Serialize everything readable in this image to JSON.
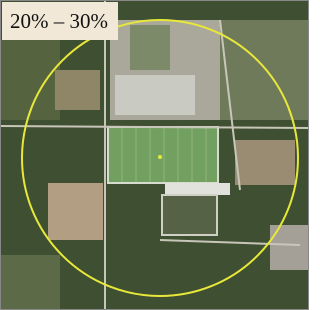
{
  "label": "20% – 30%"
}
